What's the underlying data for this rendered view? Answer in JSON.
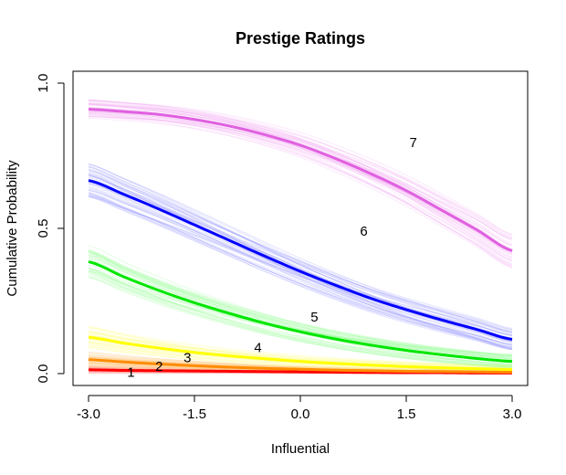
{
  "chart_data": {
    "type": "line",
    "title": "Prestige Ratings",
    "xlabel": "Influential",
    "ylabel": "Cumulative Probability",
    "xlim": [
      -3.0,
      3.0
    ],
    "ylim": [
      0.0,
      1.0
    ],
    "xticks": [
      -3.0,
      -1.5,
      0.0,
      1.5,
      3.0
    ],
    "xtick_labels": [
      "-3.0",
      "-1.5",
      "0.0",
      "1.5",
      "3.0"
    ],
    "yticks": [
      0.0,
      0.5,
      1.0
    ],
    "ytick_labels": [
      "0.0",
      "0.5",
      "1.0"
    ],
    "grid": false,
    "x": [
      -3.0,
      -2.5,
      -2.0,
      -1.5,
      -1.0,
      -0.5,
      0.0,
      0.5,
      1.0,
      1.5,
      2.0,
      2.5,
      3.0
    ],
    "series": [
      {
        "label": "1",
        "color": "#ff0000",
        "band_color": "#ff9999",
        "label_pos": [
          -2.4,
          0.005
        ],
        "values": [
          0.013,
          0.011,
          0.01,
          0.009,
          0.008,
          0.007,
          0.006,
          0.005,
          0.004,
          0.003,
          0.003,
          0.002,
          0.002
        ]
      },
      {
        "label": "2",
        "color": "#ff8c00",
        "band_color": "#ffc880",
        "label_pos": [
          -2.0,
          0.025
        ],
        "values": [
          0.048,
          0.04,
          0.033,
          0.027,
          0.022,
          0.018,
          0.015,
          0.012,
          0.01,
          0.008,
          0.007,
          0.006,
          0.005
        ]
      },
      {
        "label": "3",
        "color": "#ffff00",
        "band_color": "#ffff99",
        "label_pos": [
          -1.6,
          0.055
        ],
        "values": [
          0.125,
          0.105,
          0.088,
          0.073,
          0.061,
          0.051,
          0.042,
          0.035,
          0.029,
          0.024,
          0.02,
          0.017,
          0.014
        ]
      },
      {
        "label": "4",
        "color": "#00e600",
        "band_color": "#99ff99",
        "label_pos": [
          -0.6,
          0.09
        ],
        "values": [
          0.385,
          0.333,
          0.286,
          0.244,
          0.207,
          0.173,
          0.144,
          0.119,
          0.098,
          0.08,
          0.065,
          0.052,
          0.042
        ]
      },
      {
        "label": "5",
        "color": "#0000ff",
        "band_color": "#9999ff",
        "label_pos": [
          0.2,
          0.195
        ],
        "values": [
          0.665,
          0.617,
          0.566,
          0.512,
          0.458,
          0.404,
          0.352,
          0.304,
          0.259,
          0.22,
          0.185,
          0.152,
          0.118
        ]
      },
      {
        "label": "6",
        "color": "#e060e0",
        "band_color": "#f5b0f5",
        "label_pos": [
          0.9,
          0.49
        ],
        "values": [
          0.91,
          0.902,
          0.892,
          0.875,
          0.852,
          0.822,
          0.786,
          0.74,
          0.688,
          0.63,
          0.563,
          0.495,
          0.423
        ]
      },
      {
        "label": "7",
        "label_pos": [
          1.6,
          0.795
        ]
      }
    ]
  }
}
